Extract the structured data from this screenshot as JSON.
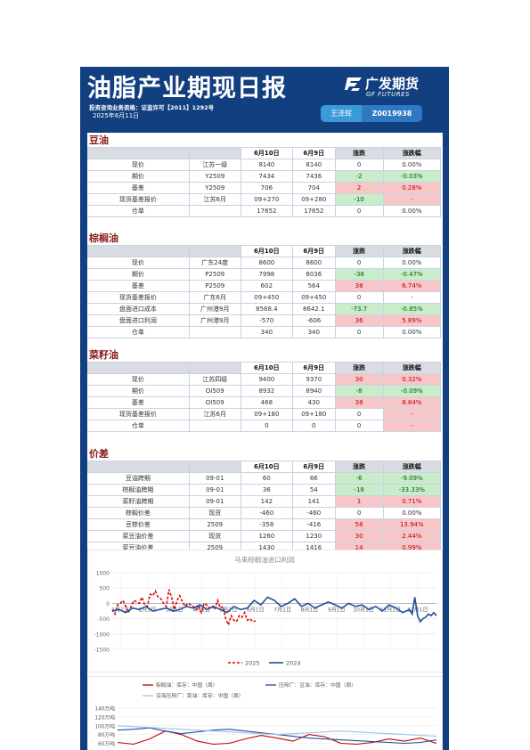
{
  "header": {
    "title": "油脂产业期现日报",
    "license": "投资咨询业务资格：证监许可【2011】1292号",
    "date": "2025年6月11日",
    "analyst_name": "王泽辉",
    "analyst_id": "Z0019938",
    "logo_cn": "广发期货",
    "logo_en": "GF FUTURES"
  },
  "columns": [
    "",
    "",
    "6月10日",
    "6月9日",
    "涨跌",
    "涨跌幅"
  ],
  "sections": [
    {
      "title": "豆油",
      "rows": [
        {
          "label": "现价",
          "spec": "江苏一级",
          "d1": "8140",
          "d2": "8140",
          "chg": "0",
          "pct": "0.00%",
          "dir": "flat"
        },
        {
          "label": "期价",
          "spec": "Y2509",
          "d1": "7434",
          "d2": "7436",
          "chg": "-2",
          "pct": "-0.03%",
          "dir": "neg"
        },
        {
          "label": "基差",
          "spec": "Y2509",
          "d1": "706",
          "d2": "704",
          "chg": "2",
          "pct": "0.28%",
          "dir": "pos"
        },
        {
          "label": "现货基差报价",
          "spec": "江苏6月",
          "d1": "09+270",
          "d2": "09+280",
          "chg": "-10",
          "pct": "-",
          "dir": "negpos"
        },
        {
          "label": "仓单",
          "spec": "",
          "d1": "17652",
          "d2": "17652",
          "chg": "0",
          "pct": "0.00%",
          "dir": "flat"
        }
      ]
    },
    {
      "title": "棕榈油",
      "rows": [
        {
          "label": "现价",
          "spec": "广东24度",
          "d1": "8600",
          "d2": "8600",
          "chg": "0",
          "pct": "0.00%",
          "dir": "flat"
        },
        {
          "label": "期价",
          "spec": "P2509",
          "d1": "7998",
          "d2": "8036",
          "chg": "-38",
          "pct": "-0.47%",
          "dir": "neg"
        },
        {
          "label": "基差",
          "spec": "P2509",
          "d1": "602",
          "d2": "564",
          "chg": "38",
          "pct": "6.74%",
          "dir": "pos"
        },
        {
          "label": "现货基差报价",
          "spec": "广东6月",
          "d1": "09+450",
          "d2": "09+450",
          "chg": "0",
          "pct": "-",
          "dir": "flat"
        },
        {
          "label": "盘面进口成本",
          "spec": "广州港9月",
          "d1": "8568.4",
          "d2": "8642.1",
          "chg": "-73.7",
          "pct": "-0.85%",
          "dir": "neg"
        },
        {
          "label": "盘面进口利润",
          "spec": "广州港9月",
          "d1": "-570",
          "d2": "-606",
          "chg": "36",
          "pct": "5.89%",
          "dir": "pos"
        },
        {
          "label": "仓单",
          "spec": "",
          "d1": "340",
          "d2": "340",
          "chg": "0",
          "pct": "0.00%",
          "dir": "flat"
        }
      ]
    },
    {
      "title": "菜籽油",
      "rows": [
        {
          "label": "现价",
          "spec": "江苏四级",
          "d1": "9400",
          "d2": "9370",
          "chg": "30",
          "pct": "0.32%",
          "dir": "pos"
        },
        {
          "label": "期价",
          "spec": "OI509",
          "d1": "8932",
          "d2": "8940",
          "chg": "-8",
          "pct": "-0.09%",
          "dir": "neg"
        },
        {
          "label": "基差",
          "spec": "OI509",
          "d1": "468",
          "d2": "430",
          "chg": "38",
          "pct": "8.84%",
          "dir": "pos"
        },
        {
          "label": "现货基差报价",
          "spec": "江苏6月",
          "d1": "09+180",
          "d2": "09+180",
          "chg": "0",
          "pct": "-",
          "dir": "flatpos"
        },
        {
          "label": "仓单",
          "spec": "",
          "d1": "0",
          "d2": "0",
          "chg": "0",
          "pct": "-",
          "dir": "flatpos"
        }
      ]
    },
    {
      "title": "价差",
      "rows": [
        {
          "label": "豆油跨期",
          "spec": "09-01",
          "d1": "60",
          "d2": "66",
          "chg": "-6",
          "pct": "-9.09%",
          "dir": "neg"
        },
        {
          "label": "棕榈油跨期",
          "spec": "09-01",
          "d1": "36",
          "d2": "54",
          "chg": "-18",
          "pct": "-33.33%",
          "dir": "neg"
        },
        {
          "label": "菜籽油跨期",
          "spec": "09-01",
          "d1": "142",
          "d2": "141",
          "chg": "1",
          "pct": "0.71%",
          "dir": "pos"
        },
        {
          "label": "棕榈价差",
          "spec": "现货",
          "d1": "-460",
          "d2": "-460",
          "chg": "0",
          "pct": "0.00%",
          "dir": "flat"
        },
        {
          "label": "豆棕价差",
          "spec": "2509",
          "d1": "-358",
          "d2": "-416",
          "chg": "58",
          "pct": "13.94%",
          "dir": "pos"
        },
        {
          "label": "菜豆油价差",
          "spec": "现货",
          "d1": "1260",
          "d2": "1230",
          "chg": "30",
          "pct": "2.44%",
          "dir": "pos"
        },
        {
          "label": "菜豆油价差",
          "spec": "2509",
          "d1": "1430",
          "d2": "1416",
          "chg": "14",
          "pct": "0.99%",
          "dir": "pos"
        }
      ]
    }
  ],
  "colors": {
    "pos_bg": "#f7c6c9",
    "neg_bg": "#c9eccb",
    "header_bg": "#123f7f",
    "section_title": "#8b1a1a"
  },
  "chart_data": [
    {
      "type": "line",
      "title": "马来棕榈油进口利润",
      "ylim": [
        -1500,
        1000
      ],
      "yticks": [
        "1000",
        "500",
        "0",
        "-500",
        "-1000",
        "-1500"
      ],
      "x_ticks": [
        "1月1日",
        "2月1日",
        "3月1日",
        "4月1日",
        "5月1日",
        "6月1日",
        "7月1日",
        "8月1日",
        "9月1日",
        "10月1日",
        "11月1日",
        "12月1日"
      ],
      "grid": true,
      "legend_position": "bottom",
      "series": [
        {
          "name": "2025",
          "color": "#e00000",
          "dash": true,
          "x": [
            0,
            0.1,
            0.2,
            0.3,
            0.4,
            0.5,
            0.6,
            0.7,
            0.8,
            0.9,
            1.0,
            1.1,
            1.2,
            1.3,
            1.4,
            1.5,
            1.6,
            1.7,
            1.8,
            1.9,
            2.0,
            2.1,
            2.2,
            2.3,
            2.4,
            2.5,
            2.6,
            2.7,
            2.8,
            2.9,
            3.0,
            3.1,
            3.2,
            3.3,
            3.4,
            3.5,
            3.6,
            3.7,
            3.8,
            3.9,
            4.0,
            4.1,
            4.2,
            4.3,
            4.4,
            4.5,
            4.6,
            4.7,
            4.8,
            4.9,
            5.0,
            5.1,
            5.2,
            5.3
          ],
          "y": [
            -200,
            -350,
            -50,
            0,
            100,
            -100,
            -300,
            -100,
            100,
            50,
            0,
            200,
            -50,
            -100,
            300,
            250,
            400,
            200,
            150,
            0,
            -100,
            450,
            200,
            -200,
            100,
            250,
            50,
            -100,
            0,
            -50,
            -100,
            -200,
            -100,
            -300,
            0,
            -50,
            -150,
            -100,
            -200,
            100,
            -150,
            -100,
            -500,
            -700,
            -400,
            -550,
            -600,
            -400,
            -450,
            -300,
            -550,
            -500,
            -600,
            -570
          ]
        },
        {
          "name": "2024",
          "color": "#1f4e9c",
          "dash": false,
          "x": [
            0,
            0.25,
            0.5,
            0.75,
            1.0,
            1.25,
            1.5,
            1.75,
            2.0,
            2.25,
            2.5,
            2.75,
            3.0,
            3.25,
            3.5,
            3.75,
            4.0,
            4.25,
            4.5,
            4.75,
            5.0,
            5.25,
            5.5,
            5.75,
            6.0,
            6.25,
            6.5,
            6.75,
            7.0,
            7.25,
            7.5,
            7.75,
            8.0,
            8.25,
            8.5,
            8.75,
            9.0,
            9.25,
            9.5,
            9.75,
            10.0,
            10.25,
            10.5,
            10.75,
            11.0,
            11.1,
            11.2,
            11.3,
            11.4,
            11.5,
            11.6,
            11.7,
            11.8,
            11.9,
            12.0
          ],
          "y": [
            -250,
            -200,
            -300,
            -150,
            -200,
            -100,
            -250,
            -200,
            -150,
            -250,
            -200,
            -100,
            -150,
            -50,
            -200,
            -100,
            -200,
            -300,
            -100,
            -200,
            -150,
            100,
            -50,
            200,
            100,
            -100,
            0,
            150,
            -100,
            0,
            -150,
            -50,
            50,
            -50,
            -150,
            0,
            -100,
            -50,
            -200,
            -100,
            -250,
            -50,
            -150,
            -300,
            -200,
            -350,
            200,
            -400,
            -600,
            -500,
            -450,
            -350,
            -400,
            -300,
            -400
          ]
        }
      ]
    },
    {
      "type": "line",
      "title": "",
      "legend": [
        "棕榈油：库存：中国（周）",
        "压榨厂：豆油：库存：中国（周）",
        "沿海压榨厂：菜油：库存：中国（周）"
      ],
      "yticks": [
        "140万吨",
        "120万吨",
        "100万吨",
        "80万吨",
        "60万吨"
      ],
      "ylim": [
        55,
        140
      ],
      "series": [
        {
          "name": "棕榈油：库存：中国（周）",
          "color": "#c00000",
          "x": [
            0,
            1,
            2,
            3,
            4,
            5,
            6,
            7,
            8,
            9,
            10,
            11,
            12,
            13,
            14,
            15,
            16,
            17,
            18,
            19,
            20
          ],
          "y": [
            62,
            58,
            70,
            88,
            80,
            65,
            58,
            60,
            70,
            78,
            72,
            65,
            80,
            75,
            60,
            58,
            62,
            70,
            65,
            72,
            60
          ]
        },
        {
          "name": "压榨厂：豆油：库存：中国（周）",
          "color": "#1f4e9c",
          "x": [
            0,
            1,
            2,
            3,
            4,
            5,
            6,
            7,
            8,
            9,
            10,
            11,
            12,
            13,
            14,
            15,
            16,
            17,
            18,
            19,
            20
          ],
          "y": [
            90,
            92,
            95,
            88,
            82,
            86,
            90,
            92,
            88,
            84,
            80,
            76,
            72,
            70,
            68,
            66,
            64,
            62,
            60,
            62,
            68
          ]
        },
        {
          "name": "沿海压榨厂：菜油：库存：中国（周）",
          "color": "#9dc3e6",
          "x": [
            0,
            1,
            2,
            3,
            4,
            5,
            6,
            7,
            8,
            9,
            10,
            11,
            12,
            13,
            14,
            15,
            16,
            17,
            18,
            19,
            20
          ],
          "y": [
            100,
            98,
            96,
            94,
            92,
            90,
            88,
            86,
            84,
            82,
            80,
            82,
            84,
            86,
            88,
            86,
            84,
            82,
            80,
            78,
            76
          ]
        }
      ]
    }
  ]
}
